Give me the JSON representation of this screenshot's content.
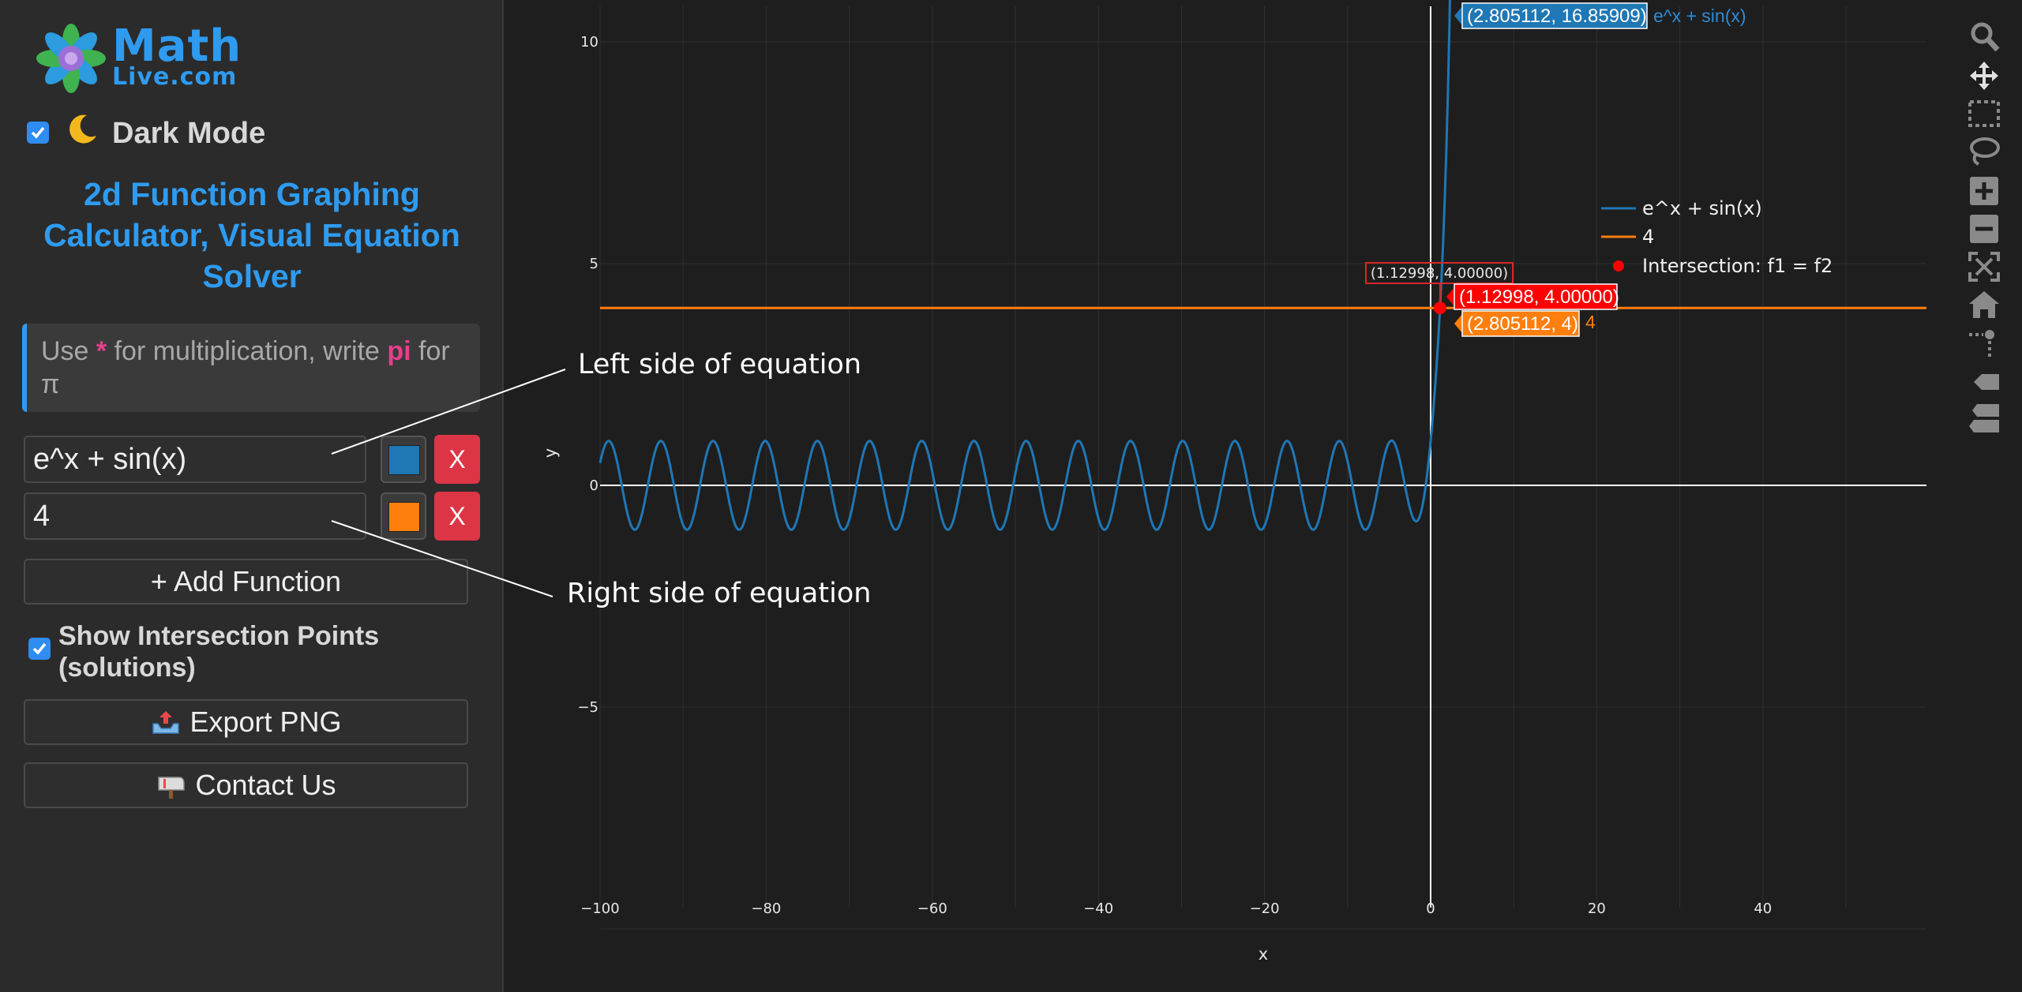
{
  "logo": {
    "line1": "Math",
    "line2": "Live.com"
  },
  "dark_mode": {
    "label": "Dark Mode",
    "checked": true
  },
  "title": "2d Function Graphing Calculator, Visual Equation Solver",
  "hint": {
    "prefix": "Use ",
    "star": "*",
    "middle": " for multiplication, write ",
    "pi_word": "pi",
    "suffix": " for π"
  },
  "functions": [
    {
      "expr": "e^x + sin(x)",
      "color": "#1f77b4",
      "delete_label": "X"
    },
    {
      "expr": "4",
      "color": "#ff7f0e",
      "delete_label": "X"
    }
  ],
  "add_function_label": "+ Add Function",
  "show_intersections": {
    "label": "Show Intersection Points (solutions)",
    "checked": true
  },
  "export_label": "Export PNG",
  "contact_label": "Contact Us",
  "annotations": {
    "left": "Left side of equation",
    "right": "Right side of equation"
  },
  "toolbar_icons": [
    "zoom-icon",
    "pan-icon",
    "box-select-icon",
    "lasso-select-icon",
    "zoom-in-icon",
    "zoom-out-icon",
    "autoscale-icon",
    "reset-axes-icon",
    "spikelines-icon",
    "hover-closest-icon",
    "hover-compare-icon"
  ],
  "chart_data": {
    "type": "line",
    "xlabel": "x",
    "ylabel": "y",
    "xlim": [
      -100,
      60
    ],
    "ylim": [
      -10.5,
      10.7
    ],
    "x_ticks": [
      -100,
      -80,
      -60,
      -40,
      -20,
      0,
      20,
      40
    ],
    "y_ticks": [
      -5,
      0,
      5,
      10
    ],
    "x_tick_labels": [
      "−100",
      "−80",
      "−60",
      "−40",
      "−20",
      "0",
      "20",
      "40"
    ],
    "y_tick_labels": [
      "−5",
      "0",
      "5",
      "10"
    ],
    "grid": true,
    "legend_position": "top-right",
    "series": [
      {
        "name": "e^x + sin(x)",
        "formula": "e^x + sin(x)",
        "color": "#1f77b4"
      },
      {
        "name": "4",
        "formula": "4",
        "color": "#ff7f0e"
      },
      {
        "name": "Intersection: f1 = f2",
        "color": "#ff0000",
        "points": [
          [
            1.12998,
            4.0
          ]
        ]
      }
    ],
    "hover_labels": {
      "f1": {
        "x": 2.805112,
        "y": 16.85909,
        "text": "(2.805112, 16.85909)",
        "series": "e^x + sin(x)"
      },
      "f2": {
        "x": 2.805112,
        "y": 4,
        "text": "(2.805112, 4)",
        "series": "4"
      },
      "intersection": {
        "text": "(1.12998, 4.00000)"
      },
      "intersection_annotation": "(1.12998, 4.00000)"
    }
  }
}
